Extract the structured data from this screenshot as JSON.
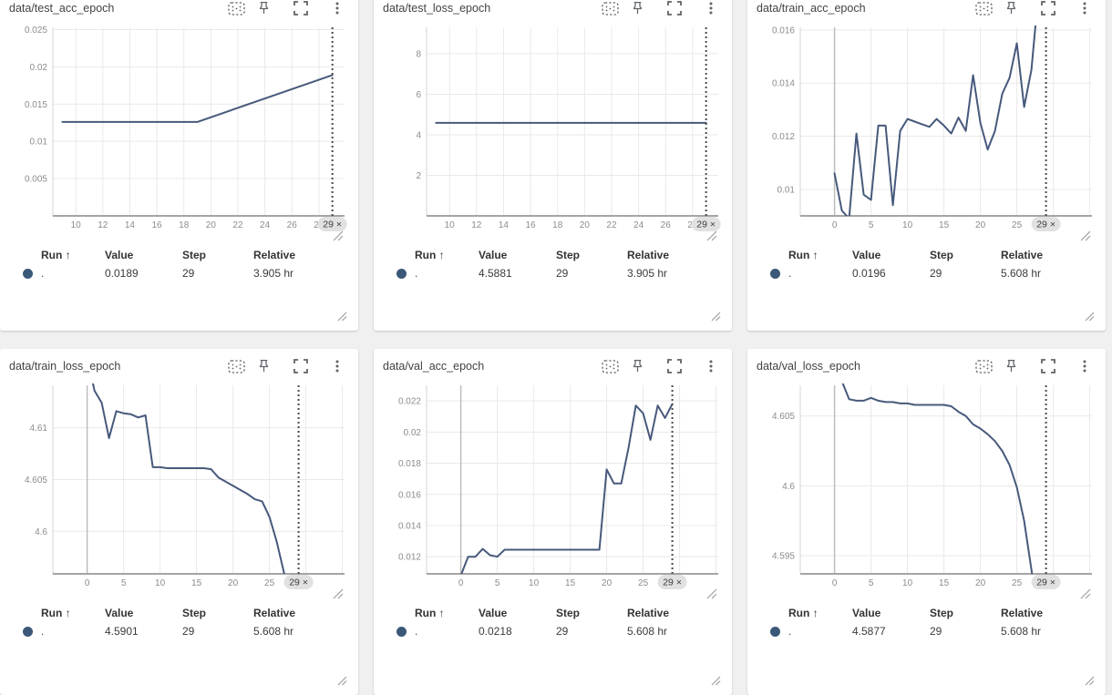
{
  "table_headers": {
    "run": "Run ↑",
    "value": "Value",
    "step": "Step",
    "relative": "Relative"
  },
  "header_icons": [
    "fit-to-domain",
    "pin-card",
    "fullscreen",
    "more-options"
  ],
  "colors": {
    "line": "#47597b",
    "run_dot": "#3b5878",
    "grid_line": "#e9e9e9",
    "axis_line": "#a5a5a5",
    "zero_line": "#bdbdbd",
    "plot_border": "#d5d5d5",
    "tick_label": "#8c8c8c",
    "cursor_line": "#4a4a4a",
    "badge_bg": "#e1e1e1",
    "badge_text": "#3c3c3c",
    "page_bg": "#f0f0f0",
    "card_bg": "#ffffff"
  },
  "cards": [
    {
      "title": "data/test_acc_epoch",
      "table": {
        "run": ".",
        "value": "0.0189",
        "step": "29",
        "relative": "3.905 hr"
      },
      "chart_data": {
        "type": "line",
        "xlim": [
          8.3,
          29.9
        ],
        "ylim": [
          0.0,
          0.0253
        ],
        "xtick_values": [
          10,
          12,
          14,
          16,
          18,
          20,
          22,
          24,
          26,
          28
        ],
        "xtick_labels": [
          "10",
          "12",
          "14",
          "16",
          "18",
          "20",
          "22",
          "24",
          "26",
          "28"
        ],
        "ytick_values": [
          0.005,
          0.01,
          0.015,
          0.02,
          0.025
        ],
        "ytick_labels": [
          "0.005",
          "0.01",
          "0.015",
          "0.02",
          "0.025"
        ],
        "zero_line": false,
        "cursor": {
          "x": 29,
          "badge": "29 ×"
        },
        "points": [
          [
            9,
            0.0126
          ],
          [
            19,
            0.0126
          ],
          [
            29,
            0.0189
          ]
        ]
      }
    },
    {
      "title": "data/test_loss_epoch",
      "table": {
        "run": ".",
        "value": "4.5881",
        "step": "29",
        "relative": "3.905 hr"
      },
      "chart_data": {
        "type": "line",
        "xlim": [
          8.3,
          29.9
        ],
        "ylim": [
          0.0,
          9.3
        ],
        "xtick_values": [
          10,
          12,
          14,
          16,
          18,
          20,
          22,
          24,
          26,
          28
        ],
        "xtick_labels": [
          "10",
          "12",
          "14",
          "16",
          "18",
          "20",
          "22",
          "24",
          "26",
          "28"
        ],
        "ytick_values": [
          2,
          4,
          6,
          8
        ],
        "ytick_labels": [
          "2",
          "4",
          "6",
          "8"
        ],
        "zero_line": false,
        "cursor": {
          "x": 29,
          "badge": "29 ×"
        },
        "points": [
          [
            9,
            4.5881
          ],
          [
            19,
            4.5881
          ],
          [
            29,
            4.5881
          ]
        ]
      }
    },
    {
      "title": "data/train_acc_epoch",
      "table": {
        "run": ".",
        "value": "0.0196",
        "step": "29",
        "relative": "5.608 hr"
      },
      "chart_data": {
        "type": "line",
        "xlim": [
          -4.7,
          35.3
        ],
        "ylim": [
          0.009,
          0.0161
        ],
        "xtick_values": [
          0,
          5,
          10,
          15,
          20,
          25
        ],
        "xtick_labels": [
          "0",
          "5",
          "10",
          "15",
          "20",
          "25"
        ],
        "xgrid_extra": [
          30,
          35
        ],
        "ytick_values": [
          0.01,
          0.012,
          0.014,
          0.016
        ],
        "ytick_labels": [
          "0.01",
          "0.012",
          "0.014",
          "0.016"
        ],
        "zero_line": true,
        "cursor": {
          "x": 29,
          "badge": "29 ×"
        },
        "points": [
          [
            0,
            0.0106
          ],
          [
            1,
            0.0092
          ],
          [
            2,
            0.0089
          ],
          [
            3,
            0.0121
          ],
          [
            4,
            0.0098
          ],
          [
            5,
            0.0096
          ],
          [
            6,
            0.0124
          ],
          [
            7,
            0.0124
          ],
          [
            8,
            0.0094
          ],
          [
            9,
            0.0122
          ],
          [
            10,
            0.01265
          ],
          [
            11,
            0.01255
          ],
          [
            12,
            0.01245
          ],
          [
            13,
            0.01235
          ],
          [
            14,
            0.01265
          ],
          [
            15,
            0.0124
          ],
          [
            16,
            0.0121
          ],
          [
            17,
            0.0127
          ],
          [
            18,
            0.0122
          ],
          [
            19,
            0.0143
          ],
          [
            20,
            0.0125
          ],
          [
            21,
            0.0115
          ],
          [
            22,
            0.0122
          ],
          [
            23,
            0.0136
          ],
          [
            24,
            0.0142
          ],
          [
            25,
            0.0155
          ],
          [
            26,
            0.0131
          ],
          [
            27,
            0.0145
          ],
          [
            28,
            0.0175
          ],
          [
            29,
            0.0196
          ]
        ]
      }
    },
    {
      "title": "data/train_loss_epoch",
      "table": {
        "run": ".",
        "value": "4.5901",
        "step": "29",
        "relative": "5.608 hr"
      },
      "chart_data": {
        "type": "line",
        "xlim": [
          -4.7,
          35.3
        ],
        "ylim": [
          4.5959,
          4.6141
        ],
        "xtick_values": [
          0,
          5,
          10,
          15,
          20,
          25
        ],
        "xtick_labels": [
          "0",
          "5",
          "10",
          "15",
          "20",
          "25"
        ],
        "xgrid_extra": [
          30,
          35
        ],
        "ytick_values": [
          4.6,
          4.605,
          4.61
        ],
        "ytick_labels": [
          "4.6",
          "4.605",
          "4.61"
        ],
        "zero_line": true,
        "cursor": {
          "x": 29,
          "badge": "29 ×"
        },
        "points": [
          [
            0,
            4.617
          ],
          [
            1,
            4.6136
          ],
          [
            2,
            4.6124
          ],
          [
            3,
            4.609
          ],
          [
            4,
            4.6116
          ],
          [
            5,
            4.6114
          ],
          [
            6,
            4.6113
          ],
          [
            7,
            4.611
          ],
          [
            8,
            4.6112
          ],
          [
            9,
            4.6062
          ],
          [
            10,
            4.6062
          ],
          [
            11,
            4.6061
          ],
          [
            12,
            4.6061
          ],
          [
            13,
            4.6061
          ],
          [
            14,
            4.6061
          ],
          [
            15,
            4.6061
          ],
          [
            16,
            4.6061
          ],
          [
            17,
            4.606
          ],
          [
            18,
            4.6052
          ],
          [
            19,
            4.6048
          ],
          [
            20,
            4.6044
          ],
          [
            21,
            4.604
          ],
          [
            22,
            4.6036
          ],
          [
            23,
            4.6031
          ],
          [
            24,
            4.6029
          ],
          [
            25,
            4.6014
          ],
          [
            26,
            4.599
          ],
          [
            27,
            4.596
          ],
          [
            28,
            4.5915
          ],
          [
            29,
            4.5901
          ]
        ]
      }
    },
    {
      "title": "data/val_acc_epoch",
      "table": {
        "run": ".",
        "value": "0.0218",
        "step": "29",
        "relative": "5.608 hr"
      },
      "chart_data": {
        "type": "line",
        "xlim": [
          -4.7,
          35.3
        ],
        "ylim": [
          0.0109,
          0.023
        ],
        "xtick_values": [
          0,
          5,
          10,
          15,
          20,
          25
        ],
        "xtick_labels": [
          "0",
          "5",
          "10",
          "15",
          "20",
          "25"
        ],
        "xgrid_extra": [
          30,
          35
        ],
        "ytick_values": [
          0.012,
          0.014,
          0.016,
          0.018,
          0.02,
          0.022
        ],
        "ytick_labels": [
          "0.012",
          "0.014",
          "0.016",
          "0.018",
          "0.02",
          "0.022"
        ],
        "zero_line": true,
        "cursor": {
          "x": 29,
          "badge": "29 ×"
        },
        "points": [
          [
            0,
            0.0108
          ],
          [
            1,
            0.012
          ],
          [
            2,
            0.012
          ],
          [
            3,
            0.0125
          ],
          [
            4,
            0.0121
          ],
          [
            5,
            0.012
          ],
          [
            6,
            0.01245
          ],
          [
            7,
            0.01245
          ],
          [
            8,
            0.01245
          ],
          [
            9,
            0.01245
          ],
          [
            10,
            0.01245
          ],
          [
            11,
            0.01245
          ],
          [
            12,
            0.01245
          ],
          [
            13,
            0.01245
          ],
          [
            14,
            0.01245
          ],
          [
            15,
            0.01245
          ],
          [
            16,
            0.01245
          ],
          [
            17,
            0.01245
          ],
          [
            18,
            0.01245
          ],
          [
            19,
            0.01245
          ],
          [
            20,
            0.0176
          ],
          [
            21,
            0.0167
          ],
          [
            22,
            0.0167
          ],
          [
            23,
            0.019
          ],
          [
            24,
            0.0217
          ],
          [
            25,
            0.0212
          ],
          [
            26,
            0.0195
          ],
          [
            27,
            0.0217
          ],
          [
            28,
            0.0209
          ],
          [
            29,
            0.0218
          ]
        ]
      }
    },
    {
      "title": "data/val_loss_epoch",
      "table": {
        "run": ".",
        "value": "4.5877",
        "step": "29",
        "relative": "5.608 hr"
      },
      "chart_data": {
        "type": "line",
        "xlim": [
          -4.7,
          35.3
        ],
        "ylim": [
          4.5937,
          4.6072
        ],
        "xtick_values": [
          0,
          5,
          10,
          15,
          20,
          25
        ],
        "xtick_labels": [
          "0",
          "5",
          "10",
          "15",
          "20",
          "25"
        ],
        "xgrid_extra": [
          30,
          35
        ],
        "ytick_values": [
          4.595,
          4.6,
          4.605
        ],
        "ytick_labels": [
          "4.595",
          "4.6",
          "4.605"
        ],
        "zero_line": true,
        "cursor": {
          "x": 29,
          "badge": "29 ×"
        },
        "points": [
          [
            0,
            4.609
          ],
          [
            1,
            4.6075
          ],
          [
            2,
            4.6062
          ],
          [
            3,
            4.6061
          ],
          [
            4,
            4.6061
          ],
          [
            5,
            4.6063
          ],
          [
            6,
            4.6061
          ],
          [
            7,
            4.606
          ],
          [
            8,
            4.606
          ],
          [
            9,
            4.6059
          ],
          [
            10,
            4.6059
          ],
          [
            11,
            4.6058
          ],
          [
            12,
            4.6058
          ],
          [
            13,
            4.6058
          ],
          [
            14,
            4.6058
          ],
          [
            15,
            4.6058
          ],
          [
            16,
            4.6057
          ],
          [
            17,
            4.6053
          ],
          [
            18,
            4.605
          ],
          [
            19,
            4.6044
          ],
          [
            20,
            4.6041
          ],
          [
            21,
            4.6037
          ],
          [
            22,
            4.6032
          ],
          [
            23,
            4.6025
          ],
          [
            24,
            4.6015
          ],
          [
            25,
            4.5999
          ],
          [
            26,
            4.5975
          ],
          [
            27,
            4.594
          ],
          [
            28,
            4.5905
          ],
          [
            29,
            4.5877
          ]
        ]
      }
    }
  ]
}
